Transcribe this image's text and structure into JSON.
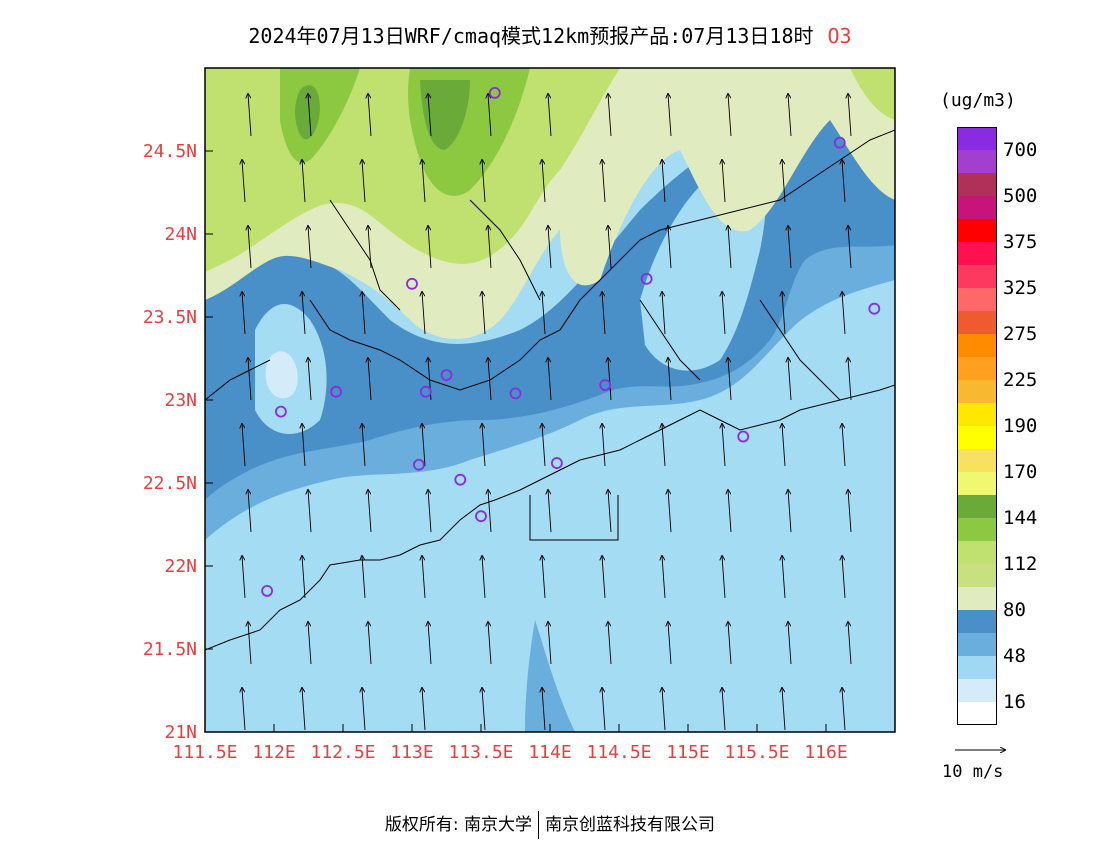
{
  "title": {
    "text": "2024年07月13日WRF/cmaq模式12km预报产品:07月13日18时",
    "species": "O3"
  },
  "unit": "(ug/m3)",
  "colorbar": {
    "colors": [
      "#8a2be2",
      "#a33fd0",
      "#b0305a",
      "#c8147a",
      "#ff0000",
      "#ff1050",
      "#ff3860",
      "#ff6868",
      "#f05a30",
      "#ff8c00",
      "#ffa020",
      "#f8b830",
      "#ffe800",
      "#ffff00",
      "#f8e060",
      "#f0f870",
      "#6aaa38",
      "#8cc840",
      "#c0e070",
      "#c8e080",
      "#e0ecc0",
      "#4a90c8",
      "#6aaede",
      "#a0d8f4",
      "#d4ecfa",
      "#ffffff"
    ],
    "labels": [
      "700",
      "500",
      "375",
      "325",
      "275",
      "225",
      "190",
      "170",
      "144",
      "112",
      "80",
      "48",
      "16"
    ]
  },
  "map": {
    "lon_ticks": [
      "111.5E",
      "112E",
      "112.5E",
      "113E",
      "113.5E",
      "114E",
      "114.5E",
      "115E",
      "115.5E",
      "116E"
    ],
    "lat_ticks": [
      "21N",
      "21.5N",
      "22N",
      "22.5N",
      "23N",
      "23.5N",
      "24N",
      "24.5N"
    ],
    "lon_range": [
      111.5,
      116.5
    ],
    "lat_range": [
      21.0,
      25.0
    ],
    "background_color": "#a4dcf4",
    "sites": [
      {
        "lon": 113.6,
        "lat": 24.85
      },
      {
        "lon": 116.1,
        "lat": 24.55
      },
      {
        "lon": 113.0,
        "lat": 23.7
      },
      {
        "lon": 114.7,
        "lat": 23.73
      },
      {
        "lon": 116.35,
        "lat": 23.55
      },
      {
        "lon": 112.45,
        "lat": 23.05
      },
      {
        "lon": 113.1,
        "lat": 23.05
      },
      {
        "lon": 113.25,
        "lat": 23.15
      },
      {
        "lon": 113.75,
        "lat": 23.04
      },
      {
        "lon": 114.4,
        "lat": 23.09
      },
      {
        "lon": 112.05,
        "lat": 22.93
      },
      {
        "lon": 115.4,
        "lat": 22.78
      },
      {
        "lon": 113.05,
        "lat": 22.61
      },
      {
        "lon": 113.35,
        "lat": 22.52
      },
      {
        "lon": 114.05,
        "lat": 22.62
      },
      {
        "lon": 113.5,
        "lat": 22.3
      },
      {
        "lon": 111.95,
        "lat": 21.85
      }
    ]
  },
  "wind_reference": {
    "label": "10 m/s"
  },
  "footer": {
    "left": "版权所有: 南京大学",
    "right": "南京创蓝科技有限公司"
  }
}
